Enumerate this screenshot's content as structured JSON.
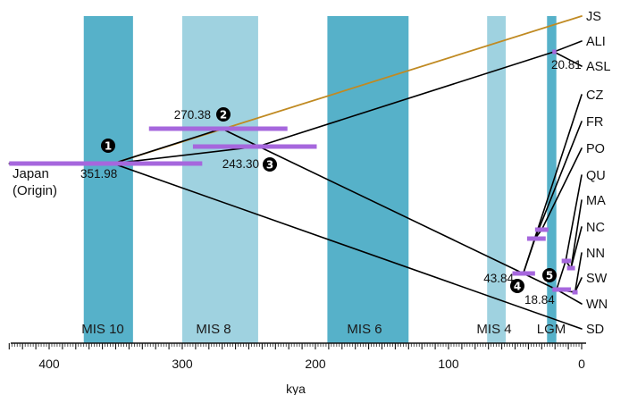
{
  "chart_data": {
    "type": "phylogenetic-timeline",
    "xlabel": "kya",
    "xlim": [
      430,
      0
    ],
    "x_ticks": [
      400,
      300,
      200,
      100,
      0
    ],
    "bands": [
      {
        "label": "MIS 10",
        "start": 374,
        "end": 337,
        "color": "#56b1c9"
      },
      {
        "label": "MIS 8",
        "start": 300,
        "end": 243,
        "color": "#9fd2e0"
      },
      {
        "label": "MIS 6",
        "start": 191,
        "end": 130,
        "color": "#56b1c9"
      },
      {
        "label": "MIS 4",
        "start": 71,
        "end": 57,
        "color": "#9fd2e0"
      },
      {
        "label": "LGM",
        "start": 26,
        "end": 19,
        "color": "#56b1c9"
      }
    ],
    "tips": [
      "JS",
      "ALI",
      "ASL",
      "CZ",
      "FR",
      "PO",
      "QU",
      "MA",
      "NC",
      "NN",
      "SW",
      "WN",
      "SD"
    ],
    "origin_label_line1": "Japan",
    "origin_label_line2": "(Origin)",
    "nodes": [
      {
        "id": "n1",
        "marker": "1",
        "age": 351.98,
        "label": "351.98",
        "ci": [
          430,
          285
        ]
      },
      {
        "id": "n2",
        "marker": "2",
        "age": 270.38,
        "label": "270.38",
        "ci": [
          325,
          221
        ]
      },
      {
        "id": "n3",
        "marker": "3",
        "age": 243.3,
        "label": "243.30",
        "ci": [
          292,
          199
        ]
      },
      {
        "id": "n4",
        "marker": "4",
        "age": 43.84,
        "label": "43.84",
        "ci": [
          52,
          35
        ]
      },
      {
        "id": "n5",
        "marker": "5",
        "age": 18.84,
        "label": "18.84",
        "ci": [
          22,
          8
        ]
      },
      {
        "id": "n_asl",
        "marker": "",
        "age": 20.81,
        "label": "20.81",
        "ci": [
          22,
          19
        ]
      },
      {
        "id": "n_a",
        "marker": "",
        "age": 35,
        "label": "",
        "ci": [
          41,
          27
        ]
      },
      {
        "id": "n_b",
        "marker": "",
        "age": 30,
        "label": "",
        "ci": [
          35,
          25
        ]
      },
      {
        "id": "n_c",
        "marker": "",
        "age": 12,
        "label": "",
        "ci": [
          15,
          8
        ]
      },
      {
        "id": "n_d",
        "marker": "",
        "age": 8,
        "label": "",
        "ci": [
          11,
          5
        ]
      },
      {
        "id": "n_e",
        "marker": "",
        "age": 5,
        "label": "",
        "ci": [
          7,
          3
        ]
      }
    ],
    "colors": {
      "js_branch": "#c08a22",
      "branch": "#000000",
      "ci_bar": "#a667dd",
      "marker": "#000000"
    }
  }
}
